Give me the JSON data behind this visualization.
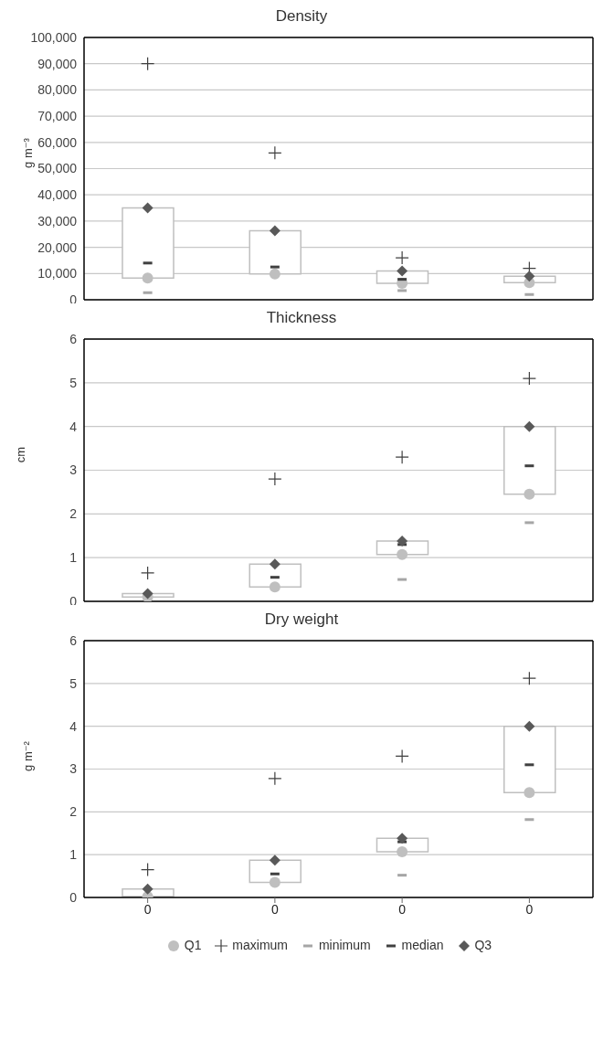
{
  "chart_data": [
    {
      "type": "scatter",
      "title": "Density",
      "ylabel": "g m⁻³",
      "categories": [
        null,
        null,
        null,
        null
      ],
      "ylim": [
        0,
        100000
      ],
      "yticks": [
        {
          "value": 0,
          "label": "0"
        },
        {
          "value": 10000,
          "label": "10,000"
        },
        {
          "value": 20000,
          "label": "20,000"
        },
        {
          "value": 30000,
          "label": "30,000"
        },
        {
          "value": 40000,
          "label": "40,000"
        },
        {
          "value": 50000,
          "label": "50,000"
        },
        {
          "value": 60000,
          "label": "60,000"
        },
        {
          "value": 70000,
          "label": "70,000"
        },
        {
          "value": 80000,
          "label": "80,000"
        },
        {
          "value": 90000,
          "label": "90,000"
        },
        {
          "value": 100000,
          "label": "100,000"
        }
      ],
      "grid": "y",
      "tick_labels": "y",
      "series": [
        {
          "type": "bar",
          "color": "#ffffff",
          "base": [
            8300,
            9800,
            6300,
            6500
          ],
          "values": [
            26700,
            16500,
            4700,
            2500
          ]
        },
        {
          "marker": "circle",
          "color": "#bfbfbf",
          "values": [
            8300,
            9800,
            6300,
            6500
          ]
        },
        {
          "marker": "cross",
          "color": "#404040",
          "values": [
            90000,
            56000,
            16000,
            12000
          ]
        },
        {
          "marker": "square",
          "color": "#a6a6a6",
          "values": [
            2700,
            null,
            3500,
            2000
          ]
        },
        {
          "marker": "square",
          "color": "#404040",
          "values": [
            14000,
            12500,
            7800,
            null
          ]
        },
        {
          "marker": "diamond",
          "color": "#595959",
          "values": [
            35000,
            26300,
            11000,
            9000
          ]
        }
      ]
    },
    {
      "type": "scatter",
      "title": "Thickness",
      "ylabel": "cm",
      "categories": [
        null,
        null,
        null,
        null
      ],
      "ylim": [
        0,
        6
      ],
      "yticks": [
        0,
        1,
        2,
        3,
        4,
        5,
        6
      ],
      "grid": "y",
      "tick_labels": "y",
      "series": [
        {
          "type": "bar",
          "color": "#ffffff",
          "base": [
            0.1,
            0.33,
            1.07,
            2.45
          ],
          "values": [
            0.08,
            0.52,
            0.31,
            1.55
          ]
        },
        {
          "marker": "circle",
          "color": "#bfbfbf",
          "values": [
            0.1,
            0.33,
            1.07,
            2.45
          ]
        },
        {
          "marker": "cross",
          "color": "#404040",
          "values": [
            0.65,
            2.8,
            3.3,
            5.1
          ]
        },
        {
          "marker": "square",
          "color": "#a6a6a6",
          "values": [
            null,
            null,
            0.5,
            1.8
          ]
        },
        {
          "marker": "square",
          "color": "#404040",
          "values": [
            null,
            0.55,
            1.3,
            3.1
          ]
        },
        {
          "marker": "diamond",
          "color": "#595959",
          "values": [
            0.18,
            0.85,
            1.38,
            4.0
          ]
        }
      ]
    },
    {
      "type": "scatter",
      "title": "Dry weight",
      "ylabel": "g m⁻²",
      "categories": [
        "0",
        "0",
        "0",
        "0"
      ],
      "ylim": [
        0,
        6
      ],
      "yticks": [
        0,
        1,
        2,
        3,
        4,
        5,
        6
      ],
      "grid": "y",
      "legend": "bottom",
      "series": [
        {
          "type": "bar",
          "color": "#ffffff",
          "base": [
            0.02,
            0.35,
            1.07,
            2.45
          ],
          "values": [
            0.18,
            0.52,
            0.31,
            1.55
          ]
        },
        {
          "name": "Q1",
          "marker": "circle",
          "color": "#bfbfbf",
          "values": [
            0.02,
            0.35,
            1.07,
            2.45
          ]
        },
        {
          "name": "maximum",
          "marker": "cross",
          "color": "#404040",
          "values": [
            0.65,
            2.78,
            3.3,
            5.12
          ]
        },
        {
          "name": "minimum",
          "marker": "square",
          "color": "#a6a6a6",
          "values": [
            null,
            null,
            0.52,
            1.82
          ]
        },
        {
          "name": "median",
          "marker": "square",
          "color": "#404040",
          "values": [
            null,
            0.55,
            1.3,
            3.1
          ]
        },
        {
          "name": "Q3",
          "marker": "diamond",
          "color": "#595959",
          "values": [
            0.2,
            0.87,
            1.38,
            4.0
          ]
        }
      ]
    }
  ]
}
